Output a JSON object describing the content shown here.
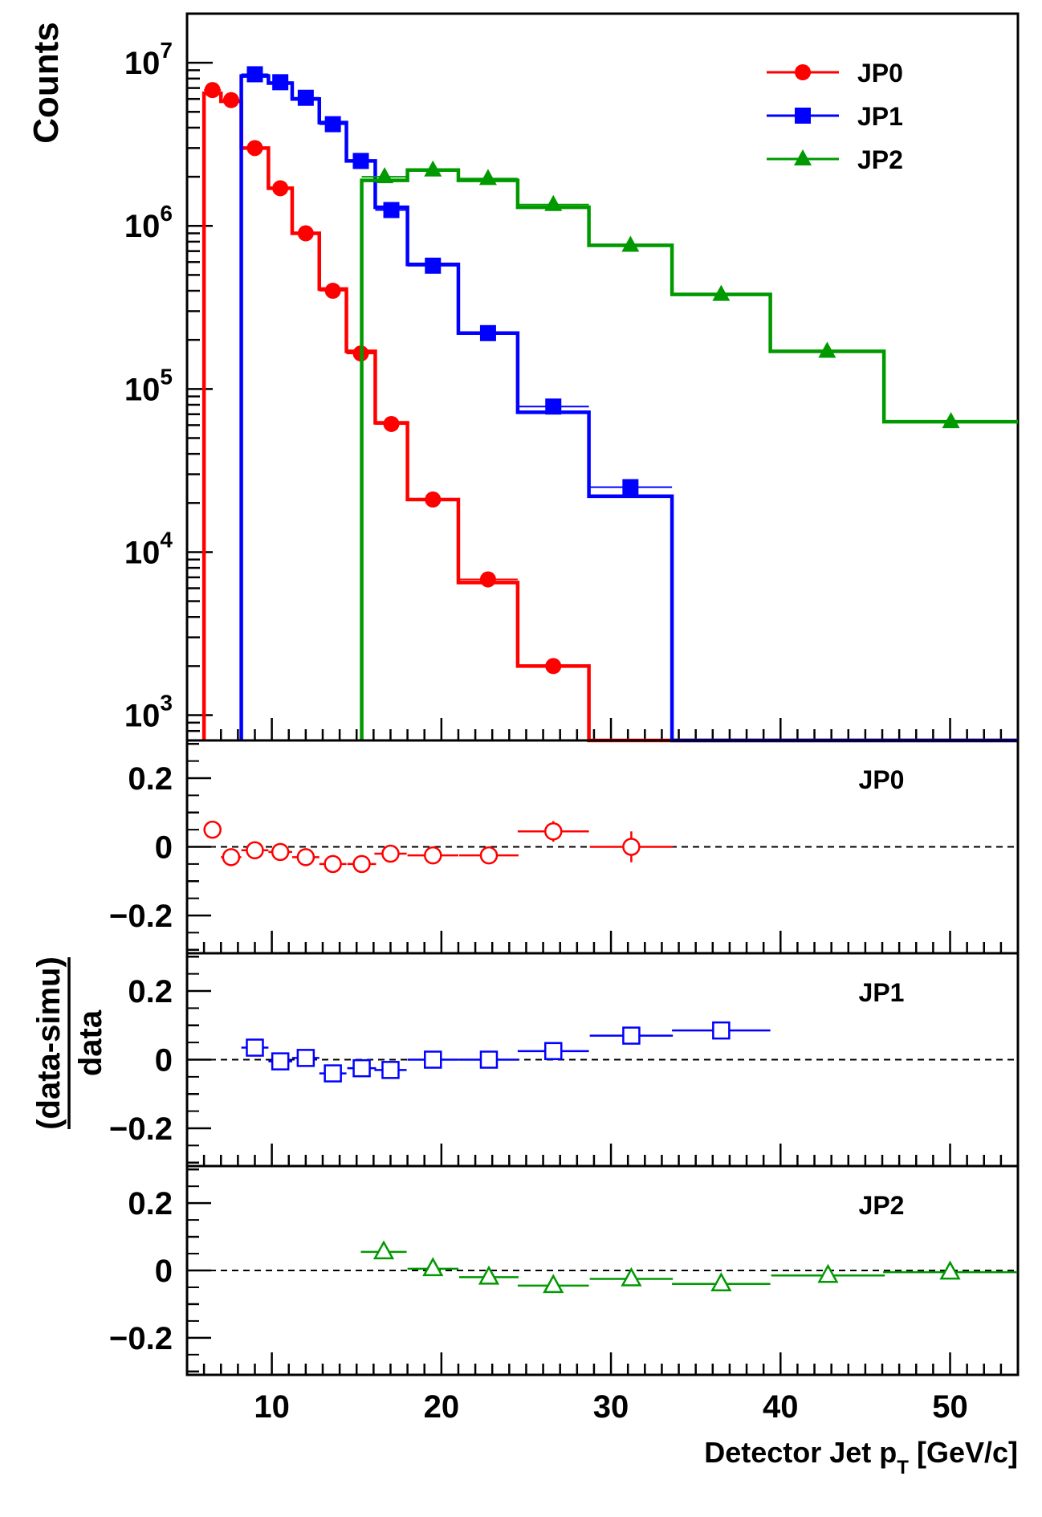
{
  "chart_data": [
    {
      "type": "line",
      "scale": "log",
      "ylabel": "Counts",
      "xlim": [
        5,
        54
      ],
      "ylim": [
        700,
        20000000
      ],
      "x_ticks": [
        10,
        20,
        30,
        40,
        50
      ],
      "y_ticks": [
        1000,
        10000,
        100000,
        1000000,
        10000000
      ],
      "y_tick_labels": [
        {
          "base": "10",
          "exp": "3"
        },
        {
          "base": "10",
          "exp": "4"
        },
        {
          "base": "10",
          "exp": "5"
        },
        {
          "base": "10",
          "exp": "6"
        },
        {
          "base": "10",
          "exp": "7"
        }
      ],
      "legend_position": "top-right",
      "series": [
        {
          "name": "JP0",
          "color": "#ff0000",
          "marker": "circle",
          "edges": [
            6,
            7,
            8.2,
            9.8,
            11.2,
            12.8,
            14.4,
            16.1,
            18,
            21,
            24.5,
            28.7,
            33.6,
            54
          ],
          "sim": [
            6500000,
            5800000,
            3000000,
            1700000,
            900000,
            410000,
            170000,
            62000,
            21000,
            6500,
            2000,
            700,
            700
          ],
          "data": [
            6800000,
            5900000,
            3000000,
            1700000,
            900000,
            400000,
            165000,
            61000,
            21000,
            6800,
            2000,
            null,
            null
          ]
        },
        {
          "name": "JP1",
          "color": "#0000ff",
          "marker": "square",
          "edges": [
            8.2,
            9.8,
            11.2,
            12.8,
            14.4,
            16.1,
            18,
            21,
            24.5,
            28.7,
            33.6,
            39.4,
            54
          ],
          "sim": [
            8300000,
            7500000,
            6000000,
            4300000,
            2500000,
            1300000,
            580000,
            220000,
            72000,
            22000,
            700,
            700
          ],
          "data": [
            8500000,
            7600000,
            6100000,
            4200000,
            2500000,
            1250000,
            570000,
            220000,
            78000,
            25000,
            null,
            null
          ]
        },
        {
          "name": "JP2",
          "color": "#009900",
          "marker": "triangle",
          "edges": [
            15.3,
            18,
            21,
            24.5,
            28.7,
            33.6,
            39.4,
            46.1,
            54
          ],
          "sim": [
            1900000,
            2200000,
            1900000,
            1300000,
            760000,
            380000,
            170000,
            63000
          ],
          "data": [
            2000000,
            2200000,
            1950000,
            1350000,
            760000,
            380000,
            170000,
            63000
          ]
        }
      ]
    },
    {
      "type": "scatter",
      "ylabel": "(data-simu)/data",
      "xlabel": "Detector Jet p",
      "xlabel_sub": "T",
      "xlabel_unit": "[GeV/c]",
      "xlim": [
        5,
        54
      ],
      "ylim": [
        -0.31,
        0.31
      ],
      "x_ticks": [
        10,
        20,
        30,
        40,
        50
      ],
      "y_ticks": [
        -0.2,
        0,
        0.2
      ],
      "y_tick_labels": [
        "−0.2",
        "0",
        "0.2"
      ],
      "panels": [
        {
          "name": "JP0",
          "color": "#ff0000",
          "marker": "open-circle",
          "x": [
            6.5,
            7.6,
            9.0,
            10.5,
            12.0,
            13.6,
            15.3,
            17.0,
            19.5,
            22.8,
            26.6,
            31.2
          ],
          "xerr": [
            0.5,
            0.6,
            0.8,
            0.7,
            0.8,
            0.8,
            0.85,
            0.95,
            1.5,
            1.75,
            2.1,
            2.45
          ],
          "y": [
            0.05,
            -0.03,
            -0.01,
            -0.015,
            -0.03,
            -0.05,
            -0.05,
            -0.02,
            -0.025,
            -0.025,
            0.045,
            0.0
          ],
          "yerr": [
            0,
            0,
            0,
            0,
            0,
            0,
            0.025,
            0,
            0.025,
            0,
            0.03,
            0.045
          ]
        },
        {
          "name": "JP1",
          "color": "#0000ff",
          "marker": "open-square",
          "x": [
            9.0,
            10.5,
            12.0,
            13.6,
            15.3,
            17.0,
            19.5,
            22.8,
            26.6,
            31.2,
            36.5
          ],
          "xerr": [
            0.8,
            0.7,
            0.8,
            0.8,
            0.85,
            0.95,
            1.5,
            1.75,
            2.1,
            2.45,
            2.9
          ],
          "y": [
            0.035,
            -0.005,
            0.005,
            -0.04,
            -0.025,
            -0.03,
            0.0,
            0.0,
            0.025,
            0.07,
            0.085
          ],
          "yerr": [
            0,
            0,
            0,
            0,
            0,
            0,
            0,
            0,
            0,
            0,
            0
          ]
        },
        {
          "name": "JP2",
          "color": "#009900",
          "marker": "open-triangle",
          "x": [
            16.6,
            19.5,
            22.8,
            26.6,
            31.2,
            36.5,
            42.8,
            50.0
          ],
          "xerr": [
            1.35,
            1.5,
            1.75,
            2.1,
            2.45,
            2.9,
            3.35,
            3.95
          ],
          "y": [
            0.055,
            0.005,
            -0.02,
            -0.045,
            -0.025,
            -0.04,
            -0.015,
            -0.005
          ],
          "yerr": [
            0,
            0,
            0,
            0,
            0,
            0,
            0,
            0
          ]
        }
      ]
    }
  ]
}
